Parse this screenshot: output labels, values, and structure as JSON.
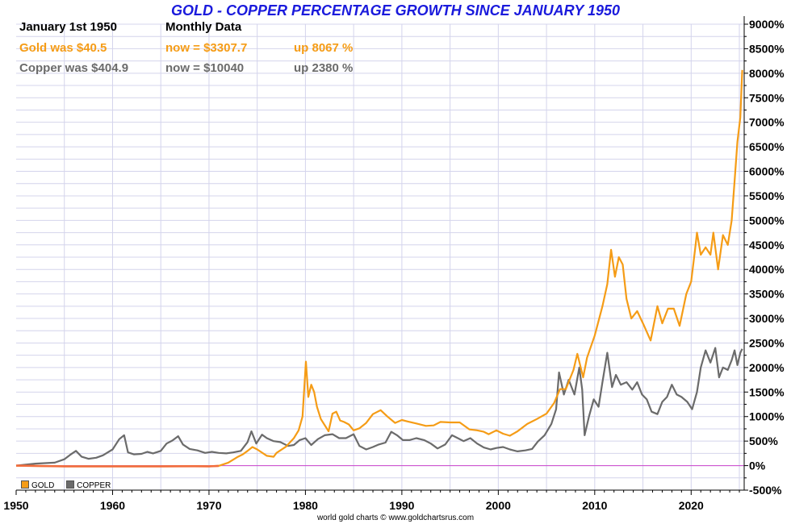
{
  "header": {
    "title": "GOLD - COPPER PERCENTAGE GROWTH SINCE JANUARY 1950",
    "date_label": "January 1st 1950",
    "frequency_label": "Monthly Data",
    "gold_start": "Gold was $40.5",
    "gold_now": "now = $3307.7",
    "gold_change": "up 8067 %",
    "copper_start": "Copper was $404.9",
    "copper_now": "now = $10040",
    "copper_change": "up 2380 %"
  },
  "footer": {
    "credit": "world gold charts © www.goldchartsrus.com"
  },
  "colors": {
    "gold": "#f59c16",
    "copper": "#6b6b6b",
    "title": "#1a1adc",
    "zero_line": "#cc44cc",
    "grid": "#d4d4ec",
    "gold_early": "#f26d3d"
  },
  "chart_data": {
    "type": "line",
    "title": "GOLD - COPPER PERCENTAGE GROWTH SINCE JANUARY 1950",
    "xlim": [
      1950,
      2025.5
    ],
    "ylim": [
      -500,
      9000
    ],
    "x_ticks": [
      "1950",
      "1960",
      "1970",
      "1980",
      "1990",
      "2000",
      "2010",
      "2020"
    ],
    "y_ticks": [
      "9000%",
      "8500%",
      "8000%",
      "7500%",
      "7000%",
      "6500%",
      "6000%",
      "5500%",
      "5000%",
      "4500%",
      "4000%",
      "3500%",
      "3000%",
      "2500%",
      "2000%",
      "1500%",
      "1000%",
      "500%",
      "0%",
      "-500%"
    ],
    "legend_position": "bottom-left",
    "grid": true,
    "series": [
      {
        "name": "GOLD",
        "points": [
          [
            1950,
            0
          ],
          [
            1955,
            -15
          ],
          [
            1960,
            -15
          ],
          [
            1965,
            -15
          ],
          [
            1968.5,
            -12
          ],
          [
            1970,
            -15
          ],
          [
            1971,
            -5
          ],
          [
            1972,
            60
          ],
          [
            1973,
            180
          ],
          [
            1973.5,
            230
          ],
          [
            1974,
            300
          ],
          [
            1974.5,
            380
          ],
          [
            1975,
            330
          ],
          [
            1976,
            200
          ],
          [
            1976.7,
            180
          ],
          [
            1977,
            260
          ],
          [
            1978,
            390
          ],
          [
            1978.8,
            560
          ],
          [
            1979.3,
            720
          ],
          [
            1979.7,
            1000
          ],
          [
            1980.05,
            2120
          ],
          [
            1980.3,
            1400
          ],
          [
            1980.6,
            1650
          ],
          [
            1980.9,
            1500
          ],
          [
            1981.2,
            1200
          ],
          [
            1981.6,
            950
          ],
          [
            1982.4,
            700
          ],
          [
            1982.8,
            1060
          ],
          [
            1983.2,
            1100
          ],
          [
            1983.6,
            920
          ],
          [
            1984,
            890
          ],
          [
            1984.5,
            840
          ],
          [
            1985,
            720
          ],
          [
            1985.6,
            760
          ],
          [
            1986.3,
            870
          ],
          [
            1987,
            1050
          ],
          [
            1987.8,
            1130
          ],
          [
            1988.5,
            1000
          ],
          [
            1989.3,
            870
          ],
          [
            1990,
            930
          ],
          [
            1990.6,
            900
          ],
          [
            1991.5,
            860
          ],
          [
            1992.5,
            810
          ],
          [
            1993.3,
            820
          ],
          [
            1994,
            890
          ],
          [
            1995,
            880
          ],
          [
            1996,
            880
          ],
          [
            1997,
            740
          ],
          [
            1997.8,
            720
          ],
          [
            1998.5,
            690
          ],
          [
            1999,
            640
          ],
          [
            1999.8,
            720
          ],
          [
            2000.5,
            650
          ],
          [
            2001.2,
            610
          ],
          [
            2002,
            700
          ],
          [
            2003,
            850
          ],
          [
            2004,
            950
          ],
          [
            2005,
            1060
          ],
          [
            2005.8,
            1280
          ],
          [
            2006.4,
            1560
          ],
          [
            2007,
            1560
          ],
          [
            2007.8,
            1950
          ],
          [
            2008.2,
            2280
          ],
          [
            2008.8,
            1800
          ],
          [
            2009.2,
            2200
          ],
          [
            2010,
            2650
          ],
          [
            2010.8,
            3250
          ],
          [
            2011.3,
            3700
          ],
          [
            2011.7,
            4400
          ],
          [
            2012.1,
            3850
          ],
          [
            2012.5,
            4250
          ],
          [
            2012.9,
            4100
          ],
          [
            2013.3,
            3400
          ],
          [
            2013.8,
            3000
          ],
          [
            2014.4,
            3150
          ],
          [
            2015,
            2900
          ],
          [
            2015.8,
            2550
          ],
          [
            2016.5,
            3250
          ],
          [
            2017,
            2900
          ],
          [
            2017.6,
            3200
          ],
          [
            2018.2,
            3200
          ],
          [
            2018.8,
            2850
          ],
          [
            2019.5,
            3500
          ],
          [
            2020,
            3750
          ],
          [
            2020.4,
            4400
          ],
          [
            2020.6,
            4750
          ],
          [
            2021,
            4300
          ],
          [
            2021.5,
            4450
          ],
          [
            2022,
            4300
          ],
          [
            2022.3,
            4750
          ],
          [
            2022.8,
            4000
          ],
          [
            2023.3,
            4700
          ],
          [
            2023.8,
            4500
          ],
          [
            2024.2,
            5000
          ],
          [
            2024.5,
            5800
          ],
          [
            2024.8,
            6600
          ],
          [
            2025.1,
            7100
          ],
          [
            2025.3,
            8067
          ]
        ]
      },
      {
        "name": "COPPER",
        "points": [
          [
            1950,
            0
          ],
          [
            1951,
            20
          ],
          [
            1952,
            40
          ],
          [
            1953,
            50
          ],
          [
            1954,
            60
          ],
          [
            1955,
            130
          ],
          [
            1955.6,
            220
          ],
          [
            1956.2,
            300
          ],
          [
            1956.8,
            180
          ],
          [
            1957.5,
            140
          ],
          [
            1958.3,
            160
          ],
          [
            1959,
            210
          ],
          [
            1960,
            330
          ],
          [
            1960.7,
            540
          ],
          [
            1961.2,
            620
          ],
          [
            1961.6,
            270
          ],
          [
            1962.2,
            230
          ],
          [
            1963,
            240
          ],
          [
            1963.6,
            280
          ],
          [
            1964.2,
            250
          ],
          [
            1965,
            300
          ],
          [
            1965.6,
            450
          ],
          [
            1966.2,
            510
          ],
          [
            1966.8,
            600
          ],
          [
            1967.3,
            430
          ],
          [
            1968,
            340
          ],
          [
            1968.8,
            310
          ],
          [
            1969.6,
            260
          ],
          [
            1970.3,
            280
          ],
          [
            1971,
            260
          ],
          [
            1971.8,
            250
          ],
          [
            1972.5,
            270
          ],
          [
            1973.3,
            300
          ],
          [
            1974,
            480
          ],
          [
            1974.4,
            700
          ],
          [
            1974.9,
            450
          ],
          [
            1975.5,
            630
          ],
          [
            1976,
            560
          ],
          [
            1976.7,
            500
          ],
          [
            1977.4,
            480
          ],
          [
            1978.2,
            400
          ],
          [
            1978.8,
            420
          ],
          [
            1979.4,
            520
          ],
          [
            1980,
            560
          ],
          [
            1980.6,
            420
          ],
          [
            1981.3,
            540
          ],
          [
            1982,
            620
          ],
          [
            1982.8,
            640
          ],
          [
            1983.5,
            560
          ],
          [
            1984.2,
            560
          ],
          [
            1985,
            640
          ],
          [
            1985.6,
            400
          ],
          [
            1986.3,
            330
          ],
          [
            1987,
            380
          ],
          [
            1987.6,
            430
          ],
          [
            1988.3,
            470
          ],
          [
            1988.9,
            690
          ],
          [
            1989.5,
            620
          ],
          [
            1990.1,
            520
          ],
          [
            1990.8,
            520
          ],
          [
            1991.5,
            560
          ],
          [
            1992.3,
            520
          ],
          [
            1993,
            450
          ],
          [
            1993.7,
            350
          ],
          [
            1994.5,
            430
          ],
          [
            1995.2,
            620
          ],
          [
            1995.8,
            560
          ],
          [
            1996.4,
            500
          ],
          [
            1997.1,
            560
          ],
          [
            1997.8,
            450
          ],
          [
            1998.5,
            370
          ],
          [
            1999.2,
            330
          ],
          [
            1999.8,
            360
          ],
          [
            2000.5,
            380
          ],
          [
            2001.2,
            330
          ],
          [
            2002,
            290
          ],
          [
            2002.8,
            310
          ],
          [
            2003.5,
            340
          ],
          [
            2004.1,
            490
          ],
          [
            2004.8,
            620
          ],
          [
            2005.5,
            850
          ],
          [
            2006,
            1150
          ],
          [
            2006.3,
            1900
          ],
          [
            2006.8,
            1450
          ],
          [
            2007.3,
            1750
          ],
          [
            2007.9,
            1450
          ],
          [
            2008.4,
            2000
          ],
          [
            2008.7,
            1550
          ],
          [
            2008.95,
            620
          ],
          [
            2009.4,
            1000
          ],
          [
            2009.9,
            1350
          ],
          [
            2010.4,
            1200
          ],
          [
            2010.8,
            1700
          ],
          [
            2011.3,
            2300
          ],
          [
            2011.8,
            1600
          ],
          [
            2012.2,
            1850
          ],
          [
            2012.7,
            1650
          ],
          [
            2013.3,
            1700
          ],
          [
            2013.9,
            1550
          ],
          [
            2014.4,
            1700
          ],
          [
            2014.9,
            1450
          ],
          [
            2015.4,
            1350
          ],
          [
            2015.9,
            1100
          ],
          [
            2016.5,
            1050
          ],
          [
            2017,
            1300
          ],
          [
            2017.5,
            1400
          ],
          [
            2018,
            1650
          ],
          [
            2018.5,
            1450
          ],
          [
            2019,
            1400
          ],
          [
            2019.6,
            1300
          ],
          [
            2020.1,
            1150
          ],
          [
            2020.6,
            1500
          ],
          [
            2021,
            2000
          ],
          [
            2021.5,
            2350
          ],
          [
            2022,
            2100
          ],
          [
            2022.5,
            2400
          ],
          [
            2022.9,
            1800
          ],
          [
            2023.3,
            2000
          ],
          [
            2023.8,
            1950
          ],
          [
            2024.2,
            2150
          ],
          [
            2024.5,
            2350
          ],
          [
            2024.8,
            2050
          ],
          [
            2025.1,
            2300
          ],
          [
            2025.3,
            2380
          ]
        ]
      }
    ]
  }
}
